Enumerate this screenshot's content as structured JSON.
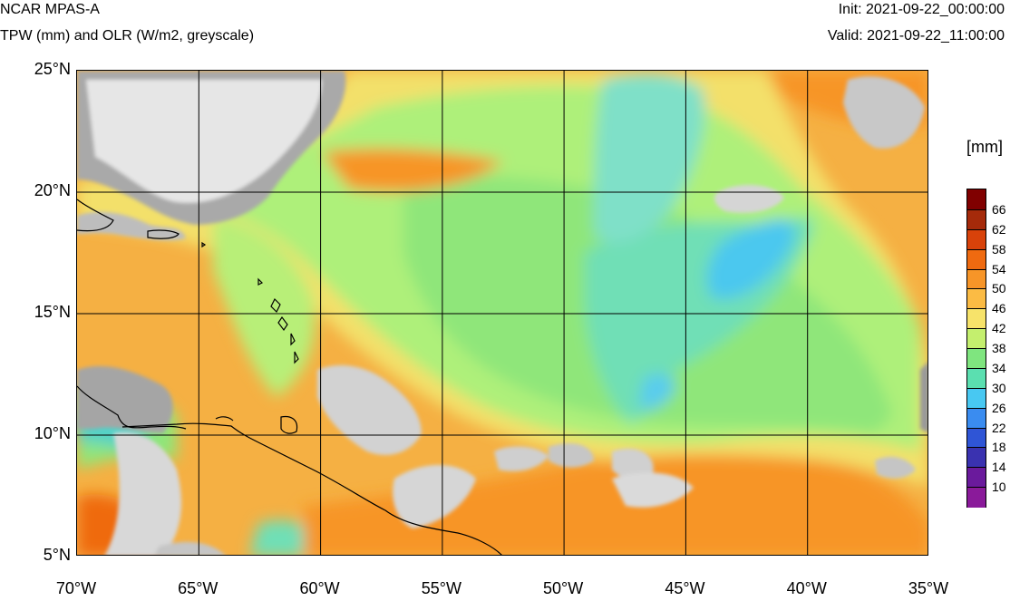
{
  "header": {
    "model": "NCAR MPAS-A",
    "fields": "TPW (mm) and OLR (W/m2, greyscale)",
    "init": "Init: 2021-09-22_00:00:00",
    "valid": "Valid: 2021-09-22_11:00:00"
  },
  "map": {
    "lon_range": [
      -70,
      -35
    ],
    "lat_range": [
      5,
      25
    ],
    "lon_ticks": [
      {
        "value": -70,
        "label": "70°W"
      },
      {
        "value": -65,
        "label": "65°W"
      },
      {
        "value": -60,
        "label": "60°W"
      },
      {
        "value": -55,
        "label": "55°W"
      },
      {
        "value": -50,
        "label": "50°W"
      },
      {
        "value": -45,
        "label": "45°W"
      },
      {
        "value": -40,
        "label": "40°W"
      },
      {
        "value": -35,
        "label": "35°W"
      }
    ],
    "lat_ticks": [
      {
        "value": 25,
        "label": "25°N"
      },
      {
        "value": 20,
        "label": "20°N"
      },
      {
        "value": 15,
        "label": "15°N"
      },
      {
        "value": 10,
        "label": "10°N"
      },
      {
        "value": 5,
        "label": "5°N"
      }
    ],
    "background_color": "#f5b043",
    "land_outline_color": "#000000",
    "grid_color": "#000000"
  },
  "colorbar": {
    "unit": "[mm]",
    "levels": [
      {
        "label": "66",
        "color": "#800000"
      },
      {
        "label": "62",
        "color": "#a52a0a"
      },
      {
        "label": "58",
        "color": "#d8420a"
      },
      {
        "label": "54",
        "color": "#ef6a10"
      },
      {
        "label": "50",
        "color": "#f79528"
      },
      {
        "label": "46",
        "color": "#fbbb44"
      },
      {
        "label": "42",
        "color": "#f7e36a"
      },
      {
        "label": "38",
        "color": "#c4ef6e"
      },
      {
        "label": "34",
        "color": "#7fe57f"
      },
      {
        "label": "30",
        "color": "#5bdfb0"
      },
      {
        "label": "26",
        "color": "#48c8f2"
      },
      {
        "label": "22",
        "color": "#3a8cf0"
      },
      {
        "label": "18",
        "color": "#2f55d6"
      },
      {
        "label": "14",
        "color": "#3a32b0"
      },
      {
        "label": "10",
        "color": "#6a1a9c"
      },
      {
        "label": "",
        "color": "#8a1a9a"
      }
    ]
  }
}
